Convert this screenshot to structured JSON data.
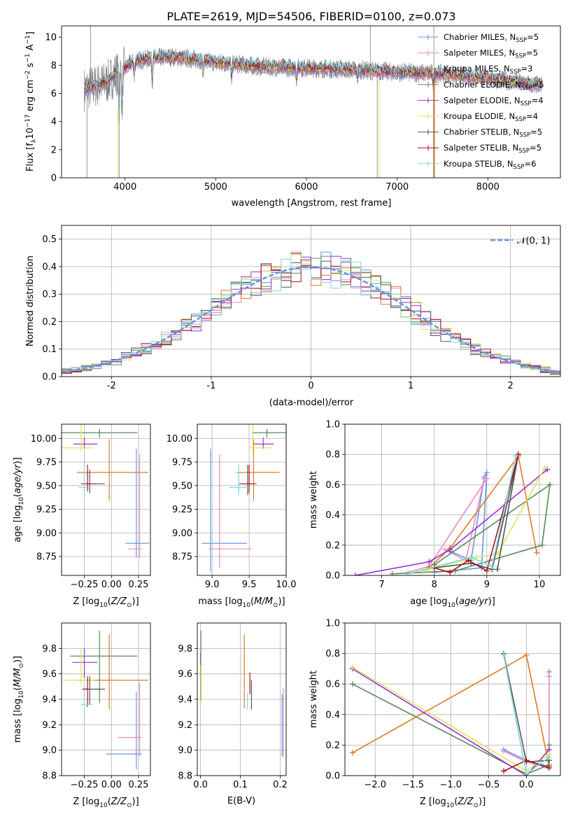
{
  "figure_title": "PLATE=2619, MJD=54506, FIBERID=0100, z=0.073",
  "colors": {
    "Chabrier MILES": "#6495ed",
    "Salpeter MILES": "#e78ac3",
    "Kroupa MILES": "#e07b22",
    "Chabrier ELODIE": "#5a8a5a",
    "Salpeter ELODIE": "#9b30d0",
    "Kroupa ELODIE": "#d6e85a",
    "Chabrier STELIB": "#555555",
    "Salpeter STELIB": "#b01020",
    "Kroupa STELIB": "#7fd6e0",
    "data": "#808080",
    "normal": "#6495ed",
    "grid": "#b0b0b0"
  },
  "chart_data": [
    {
      "type": "line",
      "title": "PLATE=2619, MJD=54506, FIBERID=0100, z=0.073",
      "xlabel": "wavelength [Angstrom, rest frame]",
      "ylabel_parts": [
        "Flux [f",
        "λ",
        "10",
        "−17",
        " erg cm",
        "−2",
        " s",
        "−1",
        " A",
        "−1",
        "]"
      ],
      "xlim": [
        3300,
        8800
      ],
      "ylim": [
        0,
        10.8
      ],
      "xticks": [
        4000,
        5000,
        6000,
        7000,
        8000
      ],
      "yticks": [
        0,
        2,
        4,
        6,
        8,
        10
      ],
      "grid": false,
      "legend_position": "top-right",
      "legend": [
        {
          "name": "Chabrier MILES",
          "n": "5"
        },
        {
          "name": "Salpeter MILES",
          "n": "5"
        },
        {
          "name": "Kroupa MILES",
          "n": "3"
        },
        {
          "name": "Chabrier ELODIE",
          "n": "5"
        },
        {
          "name": "Salpeter ELODIE",
          "n": "4"
        },
        {
          "name": "Kroupa ELODIE",
          "n": "4"
        },
        {
          "name": "Chabrier STELIB",
          "n": "5"
        },
        {
          "name": "Salpeter STELIB",
          "n": "5"
        },
        {
          "name": "Kroupa STELIB",
          "n": "6"
        }
      ],
      "legend_nssp_label": "N",
      "legend_nssp_sub": "SSP",
      "continuum": [
        [
          3550,
          6.3
        ],
        [
          3700,
          6.6
        ],
        [
          3800,
          6.8
        ],
        [
          3900,
          7.4
        ],
        [
          4000,
          7.8
        ],
        [
          4100,
          8.3
        ],
        [
          4300,
          8.5
        ],
        [
          4500,
          8.6
        ],
        [
          4800,
          8.4
        ],
        [
          5000,
          8.2
        ],
        [
          5200,
          8.1
        ],
        [
          5500,
          7.9
        ],
        [
          6000,
          7.8
        ],
        [
          6500,
          7.7
        ],
        [
          7000,
          7.5
        ],
        [
          7500,
          7.4
        ],
        [
          8000,
          7.1
        ],
        [
          8500,
          6.6
        ]
      ]
    },
    {
      "type": "histogram",
      "xlabel": "(data-model)/error",
      "ylabel": "Normed distribution",
      "xlim": [
        -2.5,
        2.5
      ],
      "ylim": [
        0,
        0.55
      ],
      "xticks": [
        -2,
        -1,
        0,
        1,
        2
      ],
      "yticks": [
        0.0,
        0.1,
        0.2,
        0.3,
        0.4,
        0.5
      ],
      "grid": true,
      "legend_label": "𝒩(0, 1)",
      "legend_position": "top-right",
      "bin_width": 0.1
    },
    {
      "type": "scatter",
      "xlabel": "Z [log10(Z/Z⊙)]",
      "ylabel": "age [log10(age/yr)]",
      "xlim": [
        -0.46,
        0.36
      ],
      "ylim": [
        8.55,
        10.15
      ],
      "xticks": [
        -0.25,
        0.0,
        0.25
      ],
      "xtick_labels": [
        "−0.25",
        "0.00",
        "0.25"
      ],
      "yticks": [
        8.75,
        9.0,
        9.25,
        9.5,
        9.75,
        10.0
      ],
      "grid": true,
      "points": [
        {
          "c": "Chabrier MILES",
          "x": 0.23,
          "y": 8.89,
          "xerr": [
            0.1,
            0.12
          ],
          "yerr": [
            0.15,
            1.0
          ]
        },
        {
          "c": "Salpeter MILES",
          "x": 0.26,
          "y": 8.83,
          "xerr": [
            0.1,
            0.02
          ],
          "yerr": [
            0.1,
            1.0
          ]
        },
        {
          "c": "Kroupa MILES",
          "x": -0.02,
          "y": 9.64,
          "xerr": [
            0.3,
            0.36
          ],
          "yerr": [
            0.3,
            0.35
          ]
        },
        {
          "c": "Chabrier ELODIE",
          "x": -0.11,
          "y": 10.06,
          "xerr": [
            0.42,
            0.35
          ],
          "yerr": [
            0.05,
            0.04
          ]
        },
        {
          "c": "Salpeter ELODIE",
          "x": -0.25,
          "y": 9.94,
          "xerr": [
            0.1,
            0.12
          ],
          "yerr": [
            0.05,
            0.07
          ]
        },
        {
          "c": "Kroupa ELODIE",
          "x": -0.28,
          "y": 9.9,
          "xerr": [
            0.22,
            0.1
          ],
          "yerr": [
            0.04,
            0.25
          ]
        },
        {
          "c": "Chabrier STELIB",
          "x": -0.2,
          "y": 9.52,
          "xerr": [
            0.07,
            0.14
          ],
          "yerr": [
            0.1,
            0.15
          ]
        },
        {
          "c": "Salpeter STELIB",
          "x": -0.22,
          "y": 9.52,
          "xerr": [
            0.06,
            0.08
          ],
          "yerr": [
            0.08,
            0.2
          ]
        },
        {
          "c": "Kroupa STELIB",
          "x": -0.25,
          "y": 9.48,
          "xerr": [
            0.05,
            0.02
          ],
          "yerr": [
            0.08,
            0.35
          ]
        }
      ]
    },
    {
      "type": "scatter",
      "xlabel": "mass [log10(M/M⊙)]",
      "ylabel": "",
      "xlim": [
        8.8,
        10.0
      ],
      "ylim": [
        8.55,
        10.15
      ],
      "xticks": [
        9.0,
        9.5,
        10.0
      ],
      "xtick_labels": [
        "9.0",
        "9.5",
        "10.0"
      ],
      "yticks": [
        8.75,
        9.0,
        9.25,
        9.5,
        9.75,
        10.0
      ],
      "grid": true,
      "points": [
        {
          "c": "Chabrier MILES",
          "x": 8.98,
          "y": 8.89,
          "xerr": [
            0.12,
            0.49
          ],
          "yerr": [
            0.3,
            1.0
          ]
        },
        {
          "c": "Salpeter MILES",
          "x": 9.1,
          "y": 8.83,
          "xerr": [
            0.15,
            0.43
          ],
          "yerr": [
            0.2,
            1.0
          ]
        },
        {
          "c": "Kroupa MILES",
          "x": 9.56,
          "y": 9.64,
          "xerr": [
            0.23,
            0.35
          ],
          "yerr": [
            0.3,
            0.35
          ]
        },
        {
          "c": "Chabrier ELODIE",
          "x": 9.74,
          "y": 10.06,
          "xerr": [
            0.2,
            0.26
          ],
          "yerr": [
            0.05,
            0.04
          ]
        },
        {
          "c": "Salpeter ELODIE",
          "x": 9.69,
          "y": 9.94,
          "xerr": [
            0.12,
            0.14
          ],
          "yerr": [
            0.05,
            0.07
          ]
        },
        {
          "c": "Kroupa ELODIE",
          "x": 9.55,
          "y": 9.9,
          "xerr": [
            0.06,
            0.25
          ],
          "yerr": [
            0.04,
            0.25
          ]
        },
        {
          "c": "Chabrier STELIB",
          "x": 9.48,
          "y": 9.52,
          "xerr": [
            0.08,
            0.07
          ],
          "yerr": [
            0.12,
            0.2
          ]
        },
        {
          "c": "Salpeter STELIB",
          "x": 9.5,
          "y": 9.52,
          "xerr": [
            0.14,
            0.1
          ],
          "yerr": [
            0.1,
            0.2
          ]
        },
        {
          "c": "Kroupa STELIB",
          "x": 9.36,
          "y": 9.48,
          "xerr": [
            0.13,
            0.14
          ],
          "yerr": [
            0.08,
            0.25
          ]
        }
      ]
    },
    {
      "type": "line",
      "xlabel": "age [log10(age/yr)]",
      "ylabel": "mass weight",
      "xlim": [
        6.3,
        10.4
      ],
      "ylim": [
        0,
        1.0
      ],
      "xticks": [
        7,
        8,
        9,
        10
      ],
      "xtick_labels": [
        "7",
        "8",
        "9",
        "10"
      ],
      "yticks": [
        0.0,
        0.2,
        0.4,
        0.6,
        0.8,
        1.0
      ],
      "grid": true,
      "series": [
        {
          "c": "Chabrier MILES",
          "x": [
            8.3,
            8.7,
            8.95,
            9.0,
            8.9,
            8.0
          ],
          "y": [
            0.16,
            0.1,
            0.65,
            0.68,
            0.05,
            0.02
          ]
        },
        {
          "c": "Salpeter MILES",
          "x": [
            8.2,
            8.6,
            8.95,
            9.0,
            7.9,
            7.5
          ],
          "y": [
            0.17,
            0.1,
            0.64,
            0.64,
            0.06,
            0.02
          ]
        },
        {
          "c": "Kroupa MILES",
          "x": [
            7.9,
            8.3,
            9.6,
            9.95
          ],
          "y": [
            0.05,
            0.18,
            0.79,
            0.15
          ]
        },
        {
          "c": "Chabrier ELODIE",
          "x": [
            7.2,
            8.4,
            10.05,
            10.2,
            8.0
          ],
          "y": [
            0.01,
            0.03,
            0.2,
            0.6,
            0.07
          ]
        },
        {
          "c": "Salpeter ELODIE",
          "x": [
            6.5,
            7.9,
            8.3,
            10.15
          ],
          "y": [
            0.0,
            0.09,
            0.17,
            0.7
          ]
        },
        {
          "c": "Kroupa ELODIE",
          "x": [
            7.8,
            8.8,
            9.2,
            10.1
          ],
          "y": [
            0.03,
            0.12,
            0.14,
            0.71
          ]
        },
        {
          "c": "Chabrier STELIB",
          "x": [
            8.0,
            8.7,
            9.1,
            9.6,
            9.2
          ],
          "y": [
            0.05,
            0.08,
            0.04,
            0.8,
            0.04
          ]
        },
        {
          "c": "Salpeter STELIB",
          "x": [
            8.0,
            8.3,
            8.65,
            9.0,
            9.6
          ],
          "y": [
            0.05,
            0.02,
            0.1,
            0.03,
            0.8
          ]
        },
        {
          "c": "Kroupa STELIB",
          "x": [
            7.5,
            8.7,
            9.1,
            9.55
          ],
          "y": [
            0.01,
            0.12,
            0.06,
            0.79
          ]
        }
      ]
    },
    {
      "type": "scatter",
      "xlabel": "Z [log10(Z/Z⊙)]",
      "ylabel": "mass [log10(M/M⊙)]",
      "xlim": [
        -0.46,
        0.36
      ],
      "ylim": [
        8.8,
        10.0
      ],
      "xticks": [
        -0.25,
        0.0,
        0.25
      ],
      "xtick_labels": [
        "−0.25",
        "0.00",
        "0.25"
      ],
      "yticks": [
        8.8,
        9.0,
        9.2,
        9.4,
        9.6,
        9.8
      ],
      "grid": true,
      "points": [
        {
          "c": "Chabrier MILES",
          "x": 0.23,
          "y": 8.97,
          "xerr": [
            0.28,
            0.05
          ],
          "yerr": [
            0.12,
            0.49
          ]
        },
        {
          "c": "Salpeter MILES",
          "x": 0.26,
          "y": 9.1,
          "xerr": [
            0.2,
            0.02
          ],
          "yerr": [
            0.15,
            0.43
          ]
        },
        {
          "c": "Kroupa MILES",
          "x": -0.02,
          "y": 9.55,
          "xerr": [
            0.3,
            0.36
          ],
          "yerr": [
            0.23,
            0.36
          ]
        },
        {
          "c": "Chabrier ELODIE",
          "x": -0.11,
          "y": 9.74,
          "xerr": [
            0.27,
            0.35
          ],
          "yerr": [
            0.37,
            0.2
          ]
        },
        {
          "c": "Salpeter ELODIE",
          "x": -0.25,
          "y": 9.69,
          "xerr": [
            0.11,
            0.12
          ],
          "yerr": [
            0.12,
            0.11
          ]
        },
        {
          "c": "Kroupa ELODIE",
          "x": -0.28,
          "y": 9.55,
          "xerr": [
            0.17,
            0.12
          ],
          "yerr": [
            0.04,
            0.25
          ]
        },
        {
          "c": "Chabrier STELIB",
          "x": -0.2,
          "y": 9.48,
          "xerr": [
            0.07,
            0.14
          ],
          "yerr": [
            0.12,
            0.1
          ]
        },
        {
          "c": "Salpeter STELIB",
          "x": -0.22,
          "y": 9.48,
          "xerr": [
            0.04,
            0.0
          ],
          "yerr": [
            0.14,
            0.1
          ]
        },
        {
          "c": "Kroupa STELIB",
          "x": -0.25,
          "y": 9.36,
          "xerr": [
            0.03,
            0.08
          ],
          "yerr": [
            0.16,
            0.1
          ]
        }
      ]
    },
    {
      "type": "scatter",
      "xlabel": "E(B-V)",
      "ylabel": "",
      "xlim": [
        -0.008,
        0.215
      ],
      "ylim": [
        8.8,
        10.0
      ],
      "xticks": [
        0.0,
        0.1,
        0.2
      ],
      "xtick_labels": [
        "0.0",
        "0.1",
        "0.2"
      ],
      "yticks": [
        8.8,
        9.0,
        9.2,
        9.4,
        9.6,
        9.8
      ],
      "grid": true,
      "points": [
        {
          "c": "Chabrier MILES",
          "x": 0.205,
          "y": 9.12,
          "xerr": [
            0,
            0
          ],
          "yerr": [
            0.17,
            0.32
          ]
        },
        {
          "c": "Salpeter MILES",
          "x": 0.208,
          "y": 9.2,
          "xerr": [
            0,
            0
          ],
          "yerr": [
            0.25,
            0.29
          ]
        },
        {
          "c": "Kroupa MILES",
          "x": 0.11,
          "y": 9.6,
          "xerr": [
            0,
            0
          ],
          "yerr": [
            0.27,
            0.31
          ]
        },
        {
          "c": "Chabrier ELODIE",
          "x": 0.001,
          "y": 9.75,
          "xerr": [
            0,
            0
          ],
          "yerr": [
            0.35,
            0.19
          ]
        },
        {
          "c": "Salpeter ELODIE",
          "x": 0.0,
          "y": 9.7,
          "xerr": [
            0,
            0
          ],
          "yerr": [
            0.03,
            0.06
          ]
        },
        {
          "c": "Kroupa ELODIE",
          "x": 0.002,
          "y": 9.6,
          "xerr": [
            0,
            0
          ],
          "yerr": [
            0.22,
            0.15
          ]
        },
        {
          "c": "Chabrier STELIB",
          "x": 0.128,
          "y": 9.48,
          "xerr": [
            0,
            0
          ],
          "yerr": [
            0.16,
            0.07
          ]
        },
        {
          "c": "Salpeter STELIB",
          "x": 0.124,
          "y": 9.52,
          "xerr": [
            0,
            0
          ],
          "yerr": [
            0.08,
            0.09
          ]
        },
        {
          "c": "Kroupa STELIB",
          "x": 0.118,
          "y": 9.4,
          "xerr": [
            0,
            0
          ],
          "yerr": [
            0.08,
            0.05
          ]
        }
      ]
    },
    {
      "type": "line",
      "xlabel": "Z [log10(Z/Z⊙)]",
      "ylabel": "mass weight",
      "xlim": [
        -2.4,
        0.45
      ],
      "ylim": [
        0,
        1.0
      ],
      "xticks": [
        -2.0,
        -1.5,
        -1.0,
        -0.5,
        0.0
      ],
      "xtick_labels": [
        "−2.0",
        "−1.5",
        "−1.0",
        "−0.5",
        "0.0"
      ],
      "yticks": [
        0.0,
        0.2,
        0.4,
        0.6,
        0.8,
        1.0
      ],
      "grid": true,
      "series": [
        {
          "c": "Chabrier MILES",
          "x": [
            -0.3,
            0.0,
            0.3,
            0.3
          ],
          "y": [
            0.17,
            0.1,
            0.06,
            0.68
          ]
        },
        {
          "c": "Salpeter MILES",
          "x": [
            -0.3,
            0.0,
            0.3,
            0.3
          ],
          "y": [
            0.16,
            0.09,
            0.05,
            0.65
          ]
        },
        {
          "c": "Kroupa MILES",
          "x": [
            -2.3,
            0.0,
            0.3
          ],
          "y": [
            0.15,
            0.79,
            0.06
          ]
        },
        {
          "c": "Chabrier ELODIE",
          "x": [
            -2.3,
            0.0,
            0.3,
            0.3
          ],
          "y": [
            0.6,
            0.01,
            0.07,
            0.2
          ]
        },
        {
          "c": "Salpeter ELODIE",
          "x": [
            -2.3,
            0.0,
            0.3
          ],
          "y": [
            0.7,
            0.0,
            0.17
          ]
        },
        {
          "c": "Kroupa ELODIE",
          "x": [
            -2.3,
            0.0,
            0.3
          ],
          "y": [
            0.71,
            0.03,
            0.14
          ]
        },
        {
          "c": "Chabrier STELIB",
          "x": [
            -0.3,
            0.0,
            0.3
          ],
          "y": [
            0.8,
            0.09,
            0.1
          ]
        },
        {
          "c": "Salpeter STELIB",
          "x": [
            -0.3,
            0.0,
            0.3
          ],
          "y": [
            0.03,
            0.1,
            0.05
          ]
        },
        {
          "c": "Kroupa STELIB",
          "x": [
            -0.3,
            0.0,
            0.3
          ],
          "y": [
            0.79,
            0.01,
            0.12
          ]
        }
      ]
    }
  ]
}
